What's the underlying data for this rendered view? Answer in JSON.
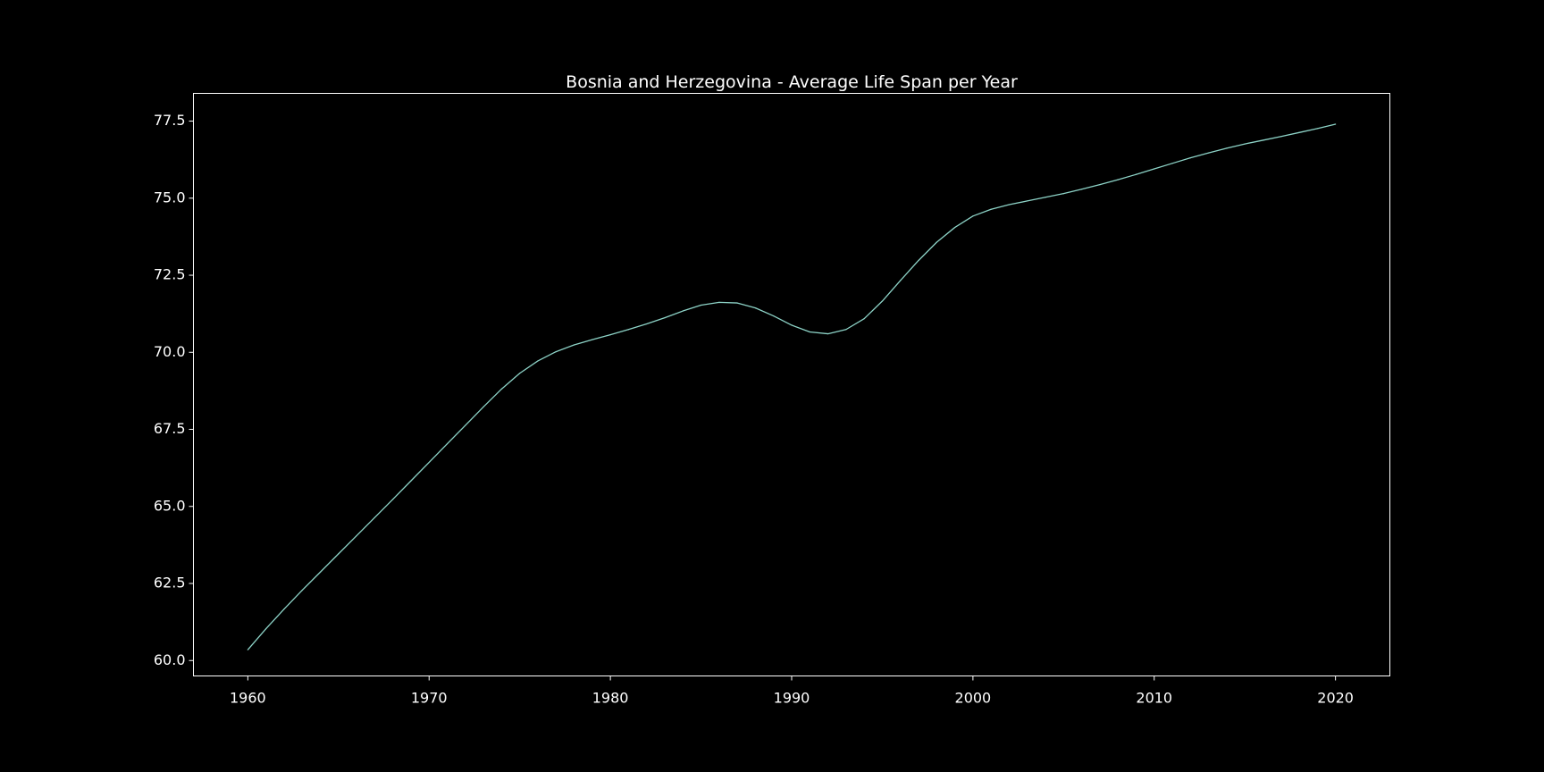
{
  "chart_data": {
    "type": "line",
    "title": "Bosnia and Herzegovina - Average Life Span per Year",
    "xlabel": "",
    "ylabel": "",
    "xlim": [
      1957,
      2023
    ],
    "ylim": [
      59.5,
      78.4
    ],
    "xticks": [
      1960,
      1970,
      1980,
      1990,
      2000,
      2010,
      2020
    ],
    "xtick_labels": [
      "1960",
      "1970",
      "1980",
      "1990",
      "2000",
      "2010",
      "2020"
    ],
    "yticks": [
      60.0,
      62.5,
      65.0,
      67.5,
      70.0,
      72.5,
      75.0,
      77.5
    ],
    "ytick_labels": [
      "60.0",
      "62.5",
      "65.0",
      "67.5",
      "70.0",
      "72.5",
      "75.0",
      "77.5"
    ],
    "grid": false,
    "background": "#000000",
    "axis_color": "#ffffff",
    "series": [
      {
        "color": "#8dd3c7",
        "x": [
          1960,
          1961,
          1962,
          1963,
          1964,
          1965,
          1966,
          1967,
          1968,
          1969,
          1970,
          1971,
          1972,
          1973,
          1974,
          1975,
          1976,
          1977,
          1978,
          1979,
          1980,
          1981,
          1982,
          1983,
          1984,
          1985,
          1986,
          1987,
          1988,
          1989,
          1990,
          1991,
          1992,
          1993,
          1994,
          1995,
          1996,
          1997,
          1998,
          1999,
          2000,
          2001,
          2002,
          2003,
          2004,
          2005,
          2006,
          2007,
          2008,
          2009,
          2010,
          2011,
          2012,
          2013,
          2014,
          2015,
          2016,
          2017,
          2018,
          2019,
          2020
        ],
        "y": [
          60.35,
          61.03,
          61.67,
          62.28,
          62.87,
          63.46,
          64.05,
          64.64,
          65.23,
          65.83,
          66.43,
          67.03,
          67.63,
          68.23,
          68.81,
          69.32,
          69.72,
          70.02,
          70.24,
          70.41,
          70.57,
          70.74,
          70.92,
          71.12,
          71.34,
          71.53,
          71.62,
          71.6,
          71.44,
          71.18,
          70.88,
          70.66,
          70.6,
          70.74,
          71.09,
          71.66,
          72.33,
          72.98,
          73.57,
          74.05,
          74.42,
          74.64,
          74.79,
          74.91,
          75.03,
          75.15,
          75.29,
          75.44,
          75.6,
          75.77,
          75.95,
          76.13,
          76.31,
          76.47,
          76.62,
          76.76,
          76.88,
          77.0,
          77.13,
          77.26,
          77.4
        ]
      }
    ]
  }
}
